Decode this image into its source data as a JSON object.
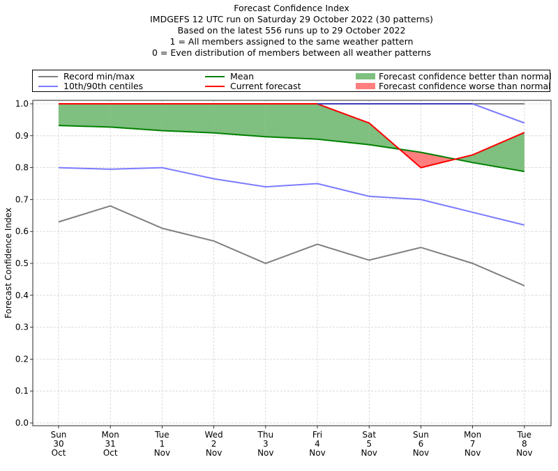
{
  "chart_data": {
    "type": "line",
    "title_lines": [
      "Forecast Confidence Index",
      "IMDGEFS 12 UTC run on Saturday 29 October 2022 (30 patterns)",
      "Based on the latest 556 runs up to 29 October 2022",
      "1 = All members assigned to the same weather pattern",
      "0 = Even distribution of members between all weather patterns"
    ],
    "xlabel": "",
    "ylabel": "Forecast Confidence Index",
    "ylim": [
      0.0,
      1.0
    ],
    "yticks": [
      "0.0",
      "0.1",
      "0.2",
      "0.3",
      "0.4",
      "0.5",
      "0.6",
      "0.7",
      "0.8",
      "0.9",
      "1.0"
    ],
    "grid": true,
    "legend_placement": "top, above plot",
    "categories": [
      [
        "Sun",
        "30",
        "Oct"
      ],
      [
        "Mon",
        "31",
        "Oct"
      ],
      [
        "Tue",
        "1",
        "Nov"
      ],
      [
        "Wed",
        "2",
        "Nov"
      ],
      [
        "Thu",
        "3",
        "Nov"
      ],
      [
        "Fri",
        "4",
        "Nov"
      ],
      [
        "Sat",
        "5",
        "Nov"
      ],
      [
        "Sun",
        "6",
        "Nov"
      ],
      [
        "Mon",
        "7",
        "Nov"
      ],
      [
        "Tue",
        "8",
        "Nov"
      ]
    ],
    "series": [
      {
        "name": "Record max",
        "legend_group": "Record min/max",
        "color": "#7f7f7f",
        "values": [
          1.0,
          1.0,
          1.0,
          1.0,
          1.0,
          1.0,
          1.0,
          1.0,
          1.0,
          1.0
        ]
      },
      {
        "name": "Record min",
        "legend_group": "Record min/max",
        "color": "#7f7f7f",
        "values": [
          0.63,
          0.68,
          0.61,
          0.57,
          0.5,
          0.56,
          0.51,
          0.55,
          0.5,
          0.43
        ]
      },
      {
        "name": "90th centile",
        "legend_group": "10th/90th centiles",
        "color": "#7b7bff",
        "values": [
          1.0,
          1.0,
          1.0,
          1.0,
          1.0,
          1.0,
          1.0,
          1.0,
          1.0,
          0.94
        ]
      },
      {
        "name": "10th centile",
        "legend_group": "10th/90th centiles",
        "color": "#7b7bff",
        "values": [
          0.8,
          0.795,
          0.8,
          0.765,
          0.74,
          0.75,
          0.71,
          0.7,
          0.66,
          0.62
        ]
      },
      {
        "name": "Mean",
        "legend_group": "Mean",
        "color": "#008000",
        "values": [
          0.932,
          0.927,
          0.916,
          0.909,
          0.897,
          0.889,
          0.872,
          0.848,
          0.816,
          0.788
        ]
      },
      {
        "name": "Current forecast",
        "legend_group": "Current forecast",
        "color": "#ff0000",
        "values": [
          1.0,
          1.0,
          1.0,
          1.0,
          1.0,
          1.0,
          0.94,
          0.8,
          0.84,
          0.91
        ]
      }
    ],
    "fills": [
      {
        "name": "Forecast confidence better than normal",
        "color": "#7fbf7f",
        "condition": "current > mean"
      },
      {
        "name": "Forecast confidence worse than normal",
        "color": "#ff7f7f",
        "condition": "current < mean"
      }
    ]
  },
  "legend": {
    "items": [
      {
        "label": "Record min/max",
        "color": "#7f7f7f",
        "kind": "line"
      },
      {
        "label": "10th/90th centiles",
        "color": "#7b7bff",
        "kind": "line"
      },
      {
        "label": "Mean",
        "color": "#008000",
        "kind": "line"
      },
      {
        "label": "Current forecast",
        "color": "#ff0000",
        "kind": "line"
      },
      {
        "label": "Forecast confidence better than normal",
        "color": "#7fbf7f",
        "kind": "patch"
      },
      {
        "label": "Forecast confidence worse than normal",
        "color": "#ff7f7f",
        "kind": "patch"
      }
    ]
  }
}
